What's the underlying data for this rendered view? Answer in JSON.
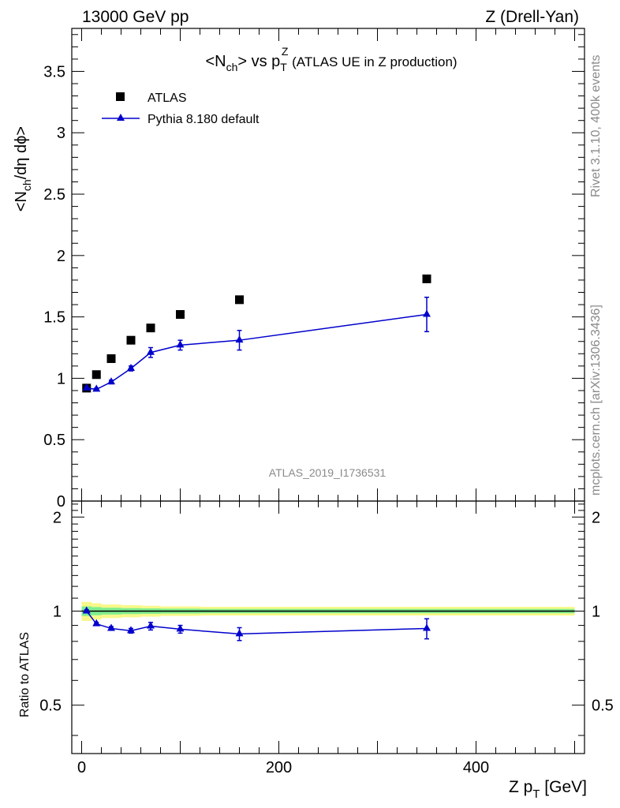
{
  "header": {
    "energy_label": "13000 GeV pp",
    "process_label": "Z (Drell-Yan)"
  },
  "side_text": {
    "rivet": "Rivet 3.1.10,  400k events",
    "mcplots": "mcplots.cern.ch [arXiv:1306.3436]"
  },
  "colors": {
    "mc_line": "#0000cc",
    "data_marker": "#000000",
    "band_inner": "#7fee8f",
    "band_outer": "#f8f88a"
  },
  "chart_data": [
    {
      "type": "scatter",
      "panel": "main",
      "title_parts": {
        "a": "<N",
        "a_sub": "ch",
        "b": "> vs p",
        "b_sub": "T",
        "b_sup": "Z",
        "c": " (ATLAS UE in Z production)"
      },
      "ylabel_parts": {
        "a": "<N",
        "a_sub": "ch",
        "b": "/dη dϕ>"
      },
      "analysis_label": "ATLAS_2019_I1736531",
      "xlim": [
        -10,
        510
      ],
      "ylim": [
        0,
        3.85
      ],
      "yticks": [
        0,
        0.5,
        1,
        1.5,
        2,
        2.5,
        3,
        3.5
      ],
      "ytick_labels": [
        "0",
        "0.5",
        "1",
        "1.5",
        "2",
        "2.5",
        "3",
        "3.5"
      ],
      "legend_placement": "top-left",
      "series": [
        {
          "name": "ATLAS",
          "style": "square-markers",
          "x": [
            5,
            15,
            30,
            50,
            70,
            100,
            160,
            350
          ],
          "y": [
            0.92,
            1.03,
            1.16,
            1.31,
            1.41,
            1.52,
            1.64,
            1.81
          ]
        },
        {
          "name": "Pythia 8.180 default",
          "style": "line-triangles",
          "x": [
            5,
            15,
            30,
            50,
            70,
            100,
            160,
            350
          ],
          "y": [
            0.92,
            0.91,
            0.97,
            1.08,
            1.21,
            1.27,
            1.31,
            1.52
          ],
          "yerr": [
            0.01,
            0.01,
            0.015,
            0.02,
            0.04,
            0.04,
            0.08,
            0.14
          ]
        }
      ]
    },
    {
      "type": "scatter",
      "panel": "ratio",
      "ylabel": "Ratio to ATLAS",
      "xlabel_parts": {
        "a": "Z p",
        "a_sub": "T",
        "b": " [GeV]"
      },
      "xlim": [
        -10,
        510
      ],
      "ylim": [
        0.35,
        2.25
      ],
      "yticks": [
        0.5,
        1,
        2
      ],
      "ytick_labels": [
        "0.5",
        "1",
        "2"
      ],
      "xticks": [
        0,
        200,
        400
      ],
      "xtick_labels": [
        "0",
        "200",
        "400"
      ],
      "reference_y": 1,
      "band_x": [
        0,
        10,
        20,
        40,
        60,
        80,
        120,
        200,
        500
      ],
      "band_inner": [
        0.035,
        0.03,
        0.025,
        0.022,
        0.02,
        0.018,
        0.016,
        0.016
      ],
      "band_outer": [
        0.07,
        0.06,
        0.05,
        0.045,
        0.04,
        0.035,
        0.032,
        0.032
      ],
      "series": [
        {
          "name": "Pythia 8.180 default",
          "style": "line-triangles",
          "x": [
            5,
            15,
            30,
            50,
            70,
            100,
            160,
            350
          ],
          "y": [
            1.0,
            0.91,
            0.88,
            0.865,
            0.895,
            0.875,
            0.845,
            0.88
          ],
          "yerr": [
            0.01,
            0.01,
            0.012,
            0.015,
            0.025,
            0.025,
            0.04,
            0.065
          ]
        }
      ]
    }
  ]
}
